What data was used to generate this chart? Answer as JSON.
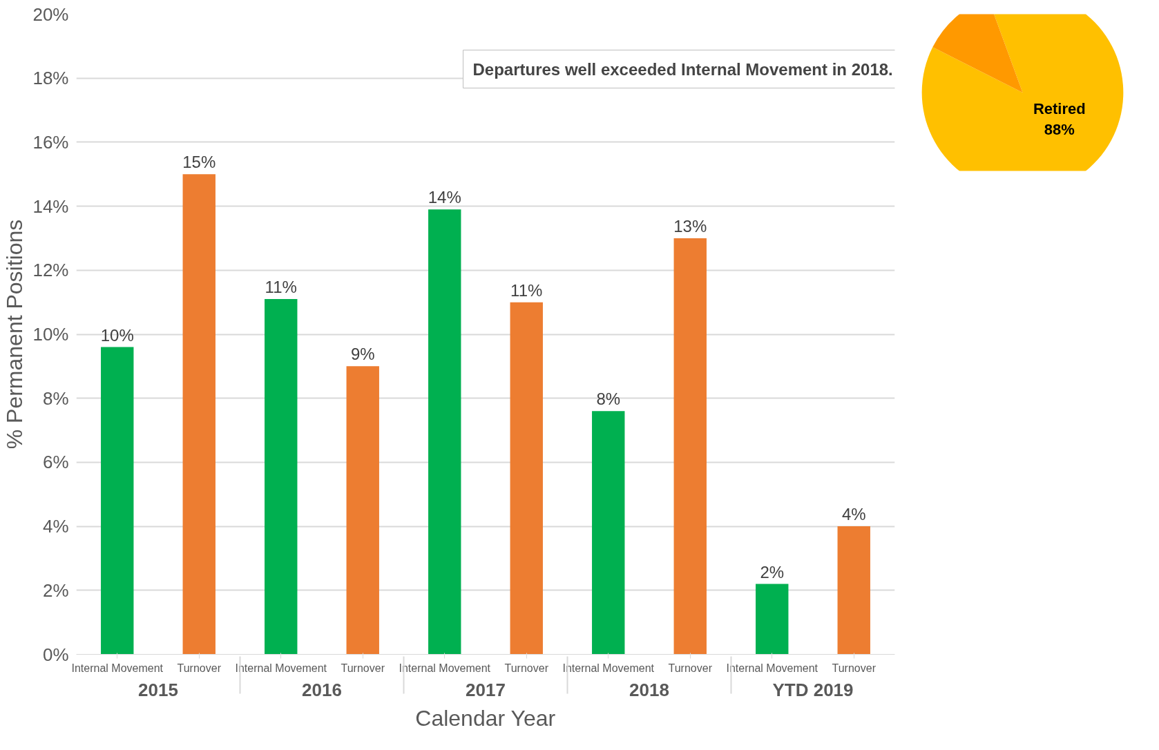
{
  "chart_data": [
    {
      "type": "bar",
      "xlabel": "Calendar Year",
      "ylabel": "% Permanent Positions",
      "categories": [
        "2015",
        "2016",
        "2017",
        "2018",
        "YTD 2019"
      ],
      "series": [
        {
          "name": "Internal Movement",
          "color": "#00b050",
          "values": [
            9.6,
            11.1,
            13.9,
            7.6,
            2.2
          ],
          "value_labels": [
            "10%",
            "11%",
            "14%",
            "8%",
            "2%"
          ]
        },
        {
          "name": "Turnover",
          "color": "#ed7d31",
          "values": [
            15,
            9,
            11,
            13,
            4
          ],
          "value_labels": [
            "15%",
            "9%",
            "11%",
            "13%",
            "4%"
          ]
        }
      ],
      "ylim": [
        0,
        20
      ],
      "yticks": [
        {
          "value": 0,
          "label": "0%"
        },
        {
          "value": 2,
          "label": "2%"
        },
        {
          "value": 4,
          "label": "4%"
        },
        {
          "value": 6,
          "label": "6%"
        },
        {
          "value": 8,
          "label": "8%"
        },
        {
          "value": 10,
          "label": "10%"
        },
        {
          "value": 12,
          "label": "12%"
        },
        {
          "value": 14,
          "label": "14%"
        },
        {
          "value": 16,
          "label": "16%"
        },
        {
          "value": 18,
          "label": "18%"
        },
        {
          "value": 20,
          "label": "20%"
        }
      ],
      "grid": "y",
      "annotations": [
        "Departures well exceeded Internal Movement in 2018."
      ]
    },
    {
      "type": "pie",
      "categories": [
        "Retired",
        null
      ],
      "values": [
        88,
        12
      ],
      "colors": [
        "#ffc000",
        "#ff9900"
      ],
      "value_labels": [
        "88%",
        null
      ]
    }
  ]
}
